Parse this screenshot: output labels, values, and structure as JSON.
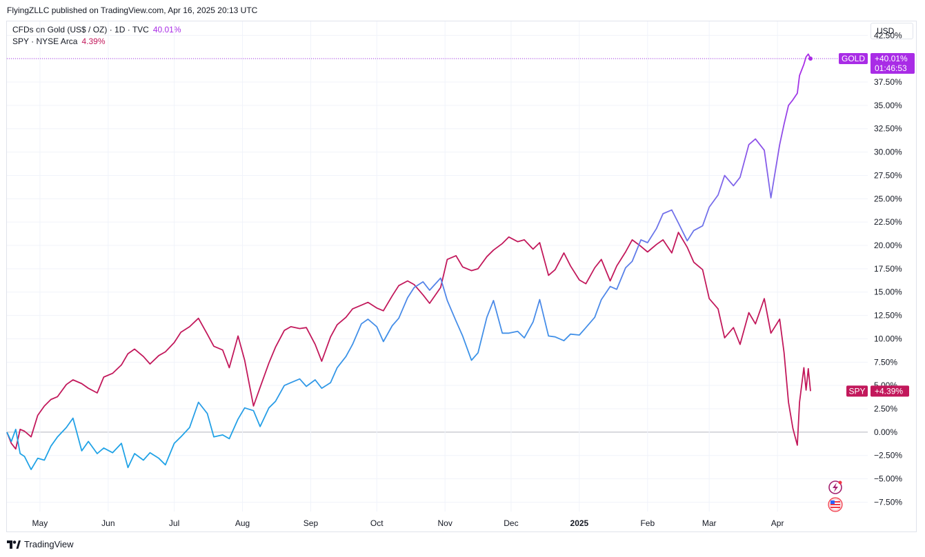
{
  "header": {
    "published": "FlyingZLLC published on TradingView.com, Apr 16, 2025 20:13 UTC"
  },
  "legend": [
    {
      "label": "CFDs on Gold (US$ / OZ) · 1D · TVC",
      "value": "40.01%",
      "color": "#a92ce6"
    },
    {
      "label": "SPY · NYSE Arca",
      "value": "4.39%",
      "color": "#c2185b"
    }
  ],
  "scale": {
    "currency": "USD"
  },
  "footer": {
    "brand": "TradingView"
  },
  "chart_data": {
    "type": "line",
    "y_unit": "percent",
    "ylim": [
      -8.5,
      44
    ],
    "y_ticks": [
      "42.50%",
      "40.00%",
      "37.50%",
      "35.00%",
      "32.50%",
      "30.00%",
      "27.50%",
      "25.00%",
      "22.50%",
      "20.00%",
      "17.50%",
      "15.00%",
      "12.50%",
      "10.00%",
      "7.50%",
      "5.00%",
      "2.50%",
      "0.00%",
      "−2.50%",
      "−5.00%",
      "−7.50%"
    ],
    "y_tick_values": [
      42.5,
      40,
      37.5,
      35,
      32.5,
      30,
      27.5,
      25,
      22.5,
      20,
      17.5,
      15,
      12.5,
      10,
      7.5,
      5,
      2.5,
      0,
      -2.5,
      -5,
      -7.5
    ],
    "x_range": [
      "2024-04-16",
      "2025-05-12"
    ],
    "x_ticks": [
      {
        "label": "May",
        "date": "2024-05-01",
        "bold": false
      },
      {
        "label": "Jun",
        "date": "2024-06-01",
        "bold": false
      },
      {
        "label": "Jul",
        "date": "2024-07-01",
        "bold": false
      },
      {
        "label": "Aug",
        "date": "2024-08-01",
        "bold": false
      },
      {
        "label": "Sep",
        "date": "2024-09-01",
        "bold": false
      },
      {
        "label": "Oct",
        "date": "2024-10-01",
        "bold": false
      },
      {
        "label": "Nov",
        "date": "2024-11-01",
        "bold": false
      },
      {
        "label": "Dec",
        "date": "2024-12-01",
        "bold": false
      },
      {
        "label": "2025",
        "date": "2025-01-01",
        "bold": true
      },
      {
        "label": "Feb",
        "date": "2025-02-01",
        "bold": false
      },
      {
        "label": "Mar",
        "date": "2025-03-01",
        "bold": false
      },
      {
        "label": "Apr",
        "date": "2025-04-01",
        "bold": false
      }
    ],
    "grid": true,
    "series": [
      {
        "name": "GOLD",
        "last_label": "+40.01%",
        "countdown": "01:46:53",
        "color_low": "#1fa2e6",
        "color_high": "#a92ce6",
        "x": [
          "2024-04-16",
          "2024-04-18",
          "2024-04-20",
          "2024-04-22",
          "2024-04-24",
          "2024-04-27",
          "2024-04-30",
          "2024-05-03",
          "2024-05-06",
          "2024-05-09",
          "2024-05-13",
          "2024-05-16",
          "2024-05-20",
          "2024-05-23",
          "2024-05-27",
          "2024-05-30",
          "2024-06-03",
          "2024-06-07",
          "2024-06-10",
          "2024-06-13",
          "2024-06-17",
          "2024-06-20",
          "2024-06-24",
          "2024-06-27",
          "2024-07-01",
          "2024-07-04",
          "2024-07-08",
          "2024-07-12",
          "2024-07-16",
          "2024-07-19",
          "2024-07-23",
          "2024-07-26",
          "2024-07-30",
          "2024-08-02",
          "2024-08-06",
          "2024-08-09",
          "2024-08-13",
          "2024-08-16",
          "2024-08-20",
          "2024-08-23",
          "2024-08-27",
          "2024-08-30",
          "2024-09-03",
          "2024-09-06",
          "2024-09-10",
          "2024-09-13",
          "2024-09-17",
          "2024-09-20",
          "2024-09-24",
          "2024-09-27",
          "2024-10-01",
          "2024-10-04",
          "2024-10-08",
          "2024-10-11",
          "2024-10-15",
          "2024-10-18",
          "2024-10-22",
          "2024-10-25",
          "2024-10-30",
          "2024-11-02",
          "2024-11-06",
          "2024-11-09",
          "2024-11-13",
          "2024-11-16",
          "2024-11-20",
          "2024-11-23",
          "2024-11-27",
          "2024-11-30",
          "2024-12-04",
          "2024-12-07",
          "2024-12-11",
          "2024-12-14",
          "2024-12-18",
          "2024-12-21",
          "2024-12-25",
          "2024-12-28",
          "2025-01-01",
          "2025-01-04",
          "2025-01-08",
          "2025-01-11",
          "2025-01-15",
          "2025-01-18",
          "2025-01-22",
          "2025-01-25",
          "2025-01-29",
          "2025-02-01",
          "2025-02-05",
          "2025-02-08",
          "2025-02-12",
          "2025-02-15",
          "2025-02-19",
          "2025-02-22",
          "2025-02-26",
          "2025-03-01",
          "2025-03-05",
          "2025-03-08",
          "2025-03-12",
          "2025-03-15",
          "2025-03-19",
          "2025-03-22",
          "2025-03-26",
          "2025-03-29",
          "2025-04-02",
          "2025-04-04",
          "2025-04-06",
          "2025-04-08",
          "2025-04-10",
          "2025-04-11",
          "2025-04-13",
          "2025-04-14",
          "2025-04-15",
          "2025-04-16"
        ],
        "y": [
          0,
          -1,
          0.3,
          -2.3,
          -2.6,
          -4,
          -2.8,
          -3,
          -1.5,
          -0.5,
          0.5,
          1.5,
          -2,
          -1,
          -2.3,
          -1.7,
          -2.2,
          -1.2,
          -3.8,
          -2.3,
          -3,
          -2.2,
          -2.8,
          -3.5,
          -1.2,
          -0.5,
          0.5,
          3.2,
          2,
          -0.5,
          -0.3,
          -0.7,
          1.4,
          2.6,
          2.3,
          0.6,
          2.6,
          3.3,
          5,
          5.3,
          5.7,
          4.9,
          5.6,
          4.7,
          5.3,
          6.9,
          8.1,
          9.4,
          11.6,
          12.1,
          11.3,
          9.7,
          11.4,
          12.2,
          14.4,
          15.5,
          16.1,
          15.2,
          16.5,
          14.1,
          11.9,
          10.3,
          7.7,
          8.5,
          12.3,
          14.1,
          10.6,
          10.6,
          10.8,
          10.1,
          11.8,
          14.2,
          10.3,
          10.2,
          9.8,
          10.5,
          10.4,
          11.2,
          12.3,
          14.2,
          15.6,
          15.3,
          17.6,
          18.3,
          20.6,
          20.3,
          21.8,
          23.4,
          23.8,
          22.4,
          20.5,
          21.6,
          22.1,
          24.1,
          25.4,
          27.5,
          26.4,
          27.3,
          30.8,
          31.4,
          30.2,
          25.1,
          30.8,
          33,
          35,
          35.6,
          36.3,
          38.2,
          39.4,
          40.2,
          40.5,
          40.01
        ]
      },
      {
        "name": "SPY",
        "last_label": "+4.39%",
        "color": "#c2185b",
        "x": [
          "2024-04-16",
          "2024-04-18",
          "2024-04-20",
          "2024-04-22",
          "2024-04-24",
          "2024-04-27",
          "2024-04-30",
          "2024-05-03",
          "2024-05-06",
          "2024-05-09",
          "2024-05-13",
          "2024-05-16",
          "2024-05-20",
          "2024-05-23",
          "2024-05-27",
          "2024-05-30",
          "2024-06-03",
          "2024-06-07",
          "2024-06-10",
          "2024-06-13",
          "2024-06-17",
          "2024-06-20",
          "2024-06-24",
          "2024-06-27",
          "2024-07-01",
          "2024-07-04",
          "2024-07-08",
          "2024-07-12",
          "2024-07-16",
          "2024-07-19",
          "2024-07-23",
          "2024-07-26",
          "2024-07-30",
          "2024-08-02",
          "2024-08-06",
          "2024-08-09",
          "2024-08-13",
          "2024-08-16",
          "2024-08-20",
          "2024-08-23",
          "2024-08-27",
          "2024-08-30",
          "2024-09-03",
          "2024-09-06",
          "2024-09-10",
          "2024-09-13",
          "2024-09-17",
          "2024-09-20",
          "2024-09-24",
          "2024-09-27",
          "2024-10-01",
          "2024-10-04",
          "2024-10-08",
          "2024-10-11",
          "2024-10-15",
          "2024-10-18",
          "2024-10-22",
          "2024-10-25",
          "2024-10-30",
          "2024-11-02",
          "2024-11-06",
          "2024-11-09",
          "2024-11-13",
          "2024-11-16",
          "2024-11-20",
          "2024-11-23",
          "2024-11-27",
          "2024-11-30",
          "2024-12-04",
          "2024-12-07",
          "2024-12-11",
          "2024-12-14",
          "2024-12-18",
          "2024-12-21",
          "2024-12-25",
          "2024-12-28",
          "2025-01-01",
          "2025-01-04",
          "2025-01-08",
          "2025-01-11",
          "2025-01-15",
          "2025-01-18",
          "2025-01-22",
          "2025-01-25",
          "2025-01-29",
          "2025-02-01",
          "2025-02-05",
          "2025-02-08",
          "2025-02-12",
          "2025-02-15",
          "2025-02-19",
          "2025-02-22",
          "2025-02-26",
          "2025-03-01",
          "2025-03-05",
          "2025-03-08",
          "2025-03-12",
          "2025-03-15",
          "2025-03-19",
          "2025-03-22",
          "2025-03-26",
          "2025-03-29",
          "2025-04-02",
          "2025-04-04",
          "2025-04-06",
          "2025-04-08",
          "2025-04-10",
          "2025-04-11",
          "2025-04-13",
          "2025-04-14",
          "2025-04-15",
          "2025-04-16"
        ],
        "y": [
          0,
          -1.2,
          -1.8,
          0.3,
          0.1,
          -0.5,
          1.8,
          2.8,
          3.5,
          3.8,
          5.1,
          5.6,
          5.2,
          4.7,
          4.2,
          5.9,
          6.3,
          7.2,
          8.4,
          8.9,
          8.1,
          7.3,
          8.2,
          8.6,
          9.6,
          10.7,
          11.3,
          12.2,
          10.5,
          9.2,
          8.8,
          6.9,
          10.3,
          7.7,
          2.8,
          4.8,
          7.4,
          9.1,
          10.9,
          11.3,
          11.1,
          11.2,
          9.4,
          7.6,
          10.2,
          11.5,
          12.3,
          13.2,
          13.6,
          13.9,
          13.3,
          13,
          14.6,
          15.7,
          16.2,
          15.8,
          14.7,
          13.8,
          15.5,
          18.5,
          18.9,
          17.7,
          17.3,
          17.5,
          18.8,
          19.5,
          20.2,
          20.9,
          20.4,
          20.6,
          19.6,
          20.3,
          16.8,
          17.4,
          19.2,
          17.8,
          16.3,
          15.9,
          17.6,
          18.5,
          16.2,
          17.8,
          19.3,
          20.6,
          19.9,
          19.3,
          20.1,
          20.6,
          19.2,
          21.4,
          19.8,
          18.2,
          17.4,
          14.3,
          13.2,
          10.1,
          11.2,
          9.4,
          12.8,
          11.6,
          14.3,
          10.6,
          12.1,
          8.5,
          3.2,
          0.4,
          -1.4,
          3.2,
          6.9,
          4.5,
          6.8,
          4.39
        ]
      }
    ]
  }
}
